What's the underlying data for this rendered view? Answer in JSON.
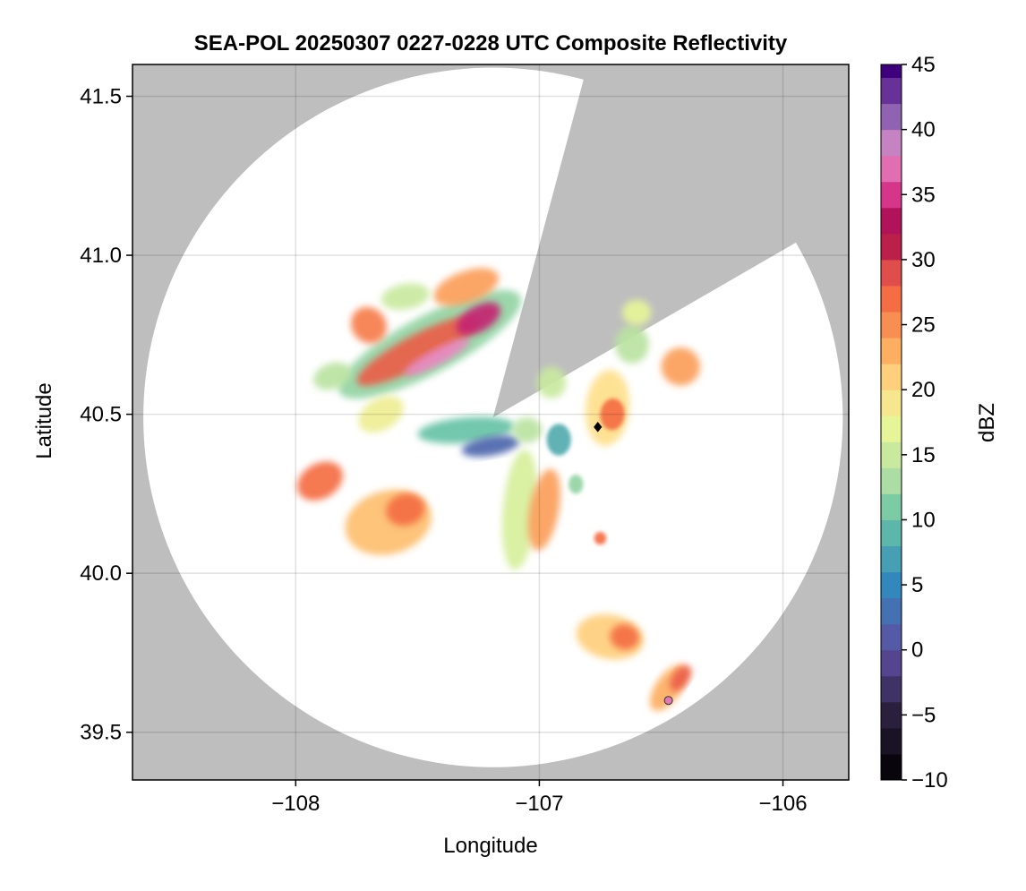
{
  "chart_data": {
    "type": "heatmap",
    "title": "SEA-POL 20250307 0227-0228 UTC Composite Reflectivity",
    "xlabel": "Longitude",
    "ylabel": "Latitude",
    "xlim": [
      -108.67,
      -105.73
    ],
    "ylim": [
      39.35,
      41.6
    ],
    "xticks": [
      -108,
      -107,
      -106
    ],
    "yticks": [
      39.5,
      40.0,
      40.5,
      41.0,
      41.5
    ],
    "xtick_labels": [
      "−108",
      "−107",
      "−106"
    ],
    "ytick_labels": [
      "39.5",
      "40.0",
      "40.5",
      "41.0",
      "41.5"
    ],
    "grid": true,
    "background_color": "#bebebe",
    "coverage_color": "#ffffff",
    "radar": {
      "center_lon": -107.19,
      "center_lat": 40.49,
      "range_deg_lat": 1.1,
      "blocked_sector_bearings_deg": [
        [
          15,
          60
        ]
      ]
    },
    "colorbar": {
      "label": "dBZ",
      "vmin": -10,
      "vmax": 45,
      "step": 2,
      "ticks": [
        -10,
        -5,
        0,
        5,
        10,
        15,
        20,
        25,
        30,
        35,
        40,
        45
      ],
      "tick_labels": [
        "−10",
        "−5",
        "0",
        "5",
        "10",
        "15",
        "20",
        "25",
        "30",
        "35",
        "40",
        "45"
      ],
      "colormap_stops": [
        [
          -10,
          "#000000"
        ],
        [
          -5,
          "#2a1f3d"
        ],
        [
          0,
          "#5e4fa2"
        ],
        [
          5,
          "#3288bd"
        ],
        [
          10,
          "#66c2a5"
        ],
        [
          13,
          "#abdda4"
        ],
        [
          17,
          "#e6f598"
        ],
        [
          20,
          "#fee08b"
        ],
        [
          23,
          "#fdae61"
        ],
        [
          27,
          "#f46d43"
        ],
        [
          30,
          "#d53e4f"
        ],
        [
          32,
          "#9e0142"
        ],
        [
          35,
          "#d6368a"
        ],
        [
          38,
          "#e78ac3"
        ],
        [
          40,
          "#a47cbf"
        ],
        [
          45,
          "#3f007d"
        ]
      ]
    },
    "echo_regions": [
      {
        "lon": -107.45,
        "lat": 40.72,
        "rx": 0.42,
        "ry": 0.09,
        "rot": -28,
        "dbz": 12
      },
      {
        "lon": -107.5,
        "lat": 40.7,
        "rx": 0.28,
        "ry": 0.05,
        "rot": -28,
        "dbz": 28
      },
      {
        "lon": -107.42,
        "lat": 40.68,
        "rx": 0.15,
        "ry": 0.025,
        "rot": -28,
        "dbz": 38
      },
      {
        "lon": -107.25,
        "lat": 40.8,
        "rx": 0.1,
        "ry": 0.04,
        "rot": -30,
        "dbz": 34
      },
      {
        "lon": -107.3,
        "lat": 40.9,
        "rx": 0.14,
        "ry": 0.05,
        "rot": -20,
        "dbz": 24
      },
      {
        "lon": -107.7,
        "lat": 40.78,
        "rx": 0.07,
        "ry": 0.06,
        "rot": -40,
        "dbz": 26
      },
      {
        "lon": -107.55,
        "lat": 40.87,
        "rx": 0.1,
        "ry": 0.04,
        "rot": -10,
        "dbz": 15
      },
      {
        "lon": -107.85,
        "lat": 40.62,
        "rx": 0.08,
        "ry": 0.04,
        "rot": -20,
        "dbz": 14
      },
      {
        "lon": -107.65,
        "lat": 40.5,
        "rx": 0.1,
        "ry": 0.05,
        "rot": -30,
        "dbz": 18
      },
      {
        "lon": -107.3,
        "lat": 40.45,
        "rx": 0.2,
        "ry": 0.04,
        "rot": -5,
        "dbz": 10
      },
      {
        "lon": -107.2,
        "lat": 40.4,
        "rx": 0.12,
        "ry": 0.03,
        "rot": -10,
        "dbz": 2
      },
      {
        "lon": -107.9,
        "lat": 40.29,
        "rx": 0.1,
        "ry": 0.055,
        "rot": -30,
        "dbz": 27
      },
      {
        "lon": -107.62,
        "lat": 40.16,
        "rx": 0.18,
        "ry": 0.1,
        "rot": -15,
        "dbz": 22
      },
      {
        "lon": -107.55,
        "lat": 40.2,
        "rx": 0.08,
        "ry": 0.05,
        "rot": -15,
        "dbz": 27
      },
      {
        "lon": -107.08,
        "lat": 40.2,
        "rx": 0.07,
        "ry": 0.19,
        "rot": 5,
        "dbz": 16
      },
      {
        "lon": -106.98,
        "lat": 40.2,
        "rx": 0.06,
        "ry": 0.13,
        "rot": 10,
        "dbz": 24
      },
      {
        "lon": -107.05,
        "lat": 40.45,
        "rx": 0.06,
        "ry": 0.04,
        "rot": 0,
        "dbz": 14
      },
      {
        "lon": -106.92,
        "lat": 40.42,
        "rx": 0.05,
        "ry": 0.05,
        "rot": 0,
        "dbz": 8
      },
      {
        "lon": -106.95,
        "lat": 40.6,
        "rx": 0.06,
        "ry": 0.05,
        "rot": 0,
        "dbz": 15
      },
      {
        "lon": -106.72,
        "lat": 40.52,
        "rx": 0.09,
        "ry": 0.12,
        "rot": 5,
        "dbz": 20
      },
      {
        "lon": -106.7,
        "lat": 40.5,
        "rx": 0.05,
        "ry": 0.05,
        "rot": 5,
        "dbz": 27
      },
      {
        "lon": -106.62,
        "lat": 40.72,
        "rx": 0.07,
        "ry": 0.06,
        "rot": 0,
        "dbz": 14
      },
      {
        "lon": -106.42,
        "lat": 40.65,
        "rx": 0.08,
        "ry": 0.06,
        "rot": 0,
        "dbz": 24
      },
      {
        "lon": -106.6,
        "lat": 40.82,
        "rx": 0.06,
        "ry": 0.04,
        "rot": 0,
        "dbz": 17
      },
      {
        "lon": -106.75,
        "lat": 40.11,
        "rx": 0.025,
        "ry": 0.02,
        "rot": 0,
        "dbz": 27
      },
      {
        "lon": -106.85,
        "lat": 40.28,
        "rx": 0.03,
        "ry": 0.03,
        "rot": 0,
        "dbz": 12
      },
      {
        "lon": -106.71,
        "lat": 39.8,
        "rx": 0.14,
        "ry": 0.07,
        "rot": 10,
        "dbz": 21
      },
      {
        "lon": -106.65,
        "lat": 39.8,
        "rx": 0.06,
        "ry": 0.04,
        "rot": 10,
        "dbz": 27
      },
      {
        "lon": -106.47,
        "lat": 39.64,
        "rx": 0.11,
        "ry": 0.04,
        "rot": -55,
        "dbz": 23
      },
      {
        "lon": -106.42,
        "lat": 39.67,
        "rx": 0.06,
        "ry": 0.025,
        "rot": -55,
        "dbz": 28
      }
    ],
    "markers": [
      {
        "lon": -106.76,
        "lat": 40.46,
        "shape": "diamond",
        "color": "#000000"
      },
      {
        "lon": -106.47,
        "lat": 39.6,
        "shape": "circle",
        "color": "#e07ab0"
      }
    ]
  }
}
